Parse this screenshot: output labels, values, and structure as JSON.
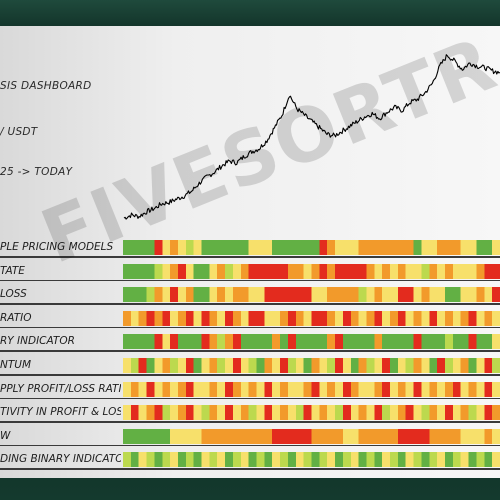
{
  "header": {
    "title": "SIS DASHBOARD",
    "pair": "/ USDT",
    "range": "25 -> TODAY"
  },
  "watermark": "FIVESORTRADE",
  "colors": {
    "red": "#e32b1e",
    "orange": "#f29a2b",
    "yellow": "#f7e06b",
    "lightgreen": "#bcd94e",
    "green": "#62b044",
    "price_line": "#000000"
  },
  "chart_data": {
    "type": "line",
    "title": "",
    "xlabel": "",
    "ylabel": "",
    "grid": false,
    "x": [
      0,
      2,
      4,
      6,
      8,
      10,
      12,
      14,
      16,
      18,
      20,
      22,
      24,
      26,
      28,
      30,
      32,
      34,
      36,
      38,
      40,
      42,
      44,
      46,
      48,
      50,
      52,
      54,
      56,
      58,
      60,
      62,
      64,
      66,
      68,
      70,
      72,
      74,
      76,
      78,
      80,
      82,
      84,
      86,
      88,
      90,
      92,
      94,
      96,
      98,
      100
    ],
    "series": [
      {
        "values": [
          5,
          7,
          6,
          9,
          11,
          14,
          15,
          17,
          19,
          22,
          27,
          31,
          34,
          38,
          41,
          40,
          44,
          47,
          49,
          54,
          62,
          70,
          83,
          74,
          70,
          66,
          62,
          58,
          57,
          60,
          63,
          66,
          69,
          71,
          68,
          72,
          75,
          73,
          78,
          80,
          84,
          90,
          101,
          108,
          104,
          99,
          103,
          101,
          100,
          98,
          97
        ]
      }
    ],
    "ylim": [
      0,
      115
    ],
    "indicators": [
      {
        "label": "PLE PRICING MODELS",
        "segments": [
          "g",
          "g",
          "g",
          "g",
          "r",
          "y",
          "o",
          "y",
          "lg",
          "y",
          "g",
          "g",
          "g",
          "g",
          "g",
          "g",
          "y",
          "y",
          "y",
          "g",
          "g",
          "g",
          "g",
          "g",
          "g",
          "r",
          "o",
          "y",
          "y",
          "y",
          "o",
          "o",
          "o",
          "o",
          "o",
          "o",
          "o",
          "g",
          "y",
          "y",
          "o",
          "o",
          "o",
          "y",
          "y",
          "g",
          "g",
          "y"
        ]
      },
      {
        "label": "TATE",
        "segments": [
          "g",
          "g",
          "g",
          "g",
          "lg",
          "y",
          "o",
          "r",
          "y",
          "g",
          "g",
          "y",
          "o",
          "lg",
          "y",
          "o",
          "r",
          "r",
          "r",
          "r",
          "r",
          "o",
          "o",
          "y",
          "o",
          "r",
          "o",
          "r",
          "r",
          "r",
          "r",
          "o",
          "y",
          "o",
          "y",
          "o",
          "y",
          "y",
          "lg",
          "o",
          "y",
          "o",
          "y",
          "y",
          "y",
          "o",
          "r",
          "r"
        ]
      },
      {
        "label": "LOSS",
        "segments": [
          "g",
          "g",
          "g",
          "lg",
          "o",
          "y",
          "r",
          "y",
          "o",
          "g",
          "g",
          "y",
          "o",
          "y",
          "o",
          "o",
          "y",
          "y",
          "r",
          "r",
          "r",
          "r",
          "r",
          "r",
          "y",
          "y",
          "o",
          "o",
          "o",
          "o",
          "lg",
          "y",
          "o",
          "y",
          "y",
          "r",
          "r",
          "y",
          "o",
          "y",
          "y",
          "g",
          "g",
          "y",
          "y",
          "o",
          "y",
          "r"
        ]
      },
      {
        "label": "RATIO",
        "segments": [
          "o",
          "y",
          "o",
          "r",
          "o",
          "r",
          "y",
          "o",
          "r",
          "y",
          "r",
          "o",
          "y",
          "r",
          "o",
          "y",
          "r",
          "r",
          "y",
          "y",
          "o",
          "r",
          "o",
          "y",
          "r",
          "r",
          "o",
          "y",
          "r",
          "o",
          "y",
          "o",
          "r",
          "y",
          "o",
          "r",
          "y",
          "o",
          "y",
          "r",
          "y",
          "o",
          "y",
          "o",
          "r",
          "y",
          "o",
          "y"
        ]
      },
      {
        "label": "RY INDICATOR",
        "segments": [
          "g",
          "g",
          "g",
          "g",
          "r",
          "y",
          "r",
          "g",
          "g",
          "g",
          "r",
          "o",
          "lg",
          "o",
          "r",
          "g",
          "g",
          "g",
          "g",
          "o",
          "g",
          "r",
          "g",
          "g",
          "g",
          "g",
          "o",
          "r",
          "g",
          "g",
          "g",
          "g",
          "o",
          "g",
          "g",
          "g",
          "g",
          "r",
          "g",
          "g",
          "g",
          "lg",
          "g",
          "g",
          "r",
          "g",
          "g",
          "y"
        ]
      },
      {
        "label": "NTUM",
        "segments": [
          "y",
          "lg",
          "r",
          "g",
          "y",
          "o",
          "lg",
          "y",
          "r",
          "g",
          "y",
          "o",
          "lg",
          "y",
          "r",
          "y",
          "lg",
          "g",
          "o",
          "y",
          "r",
          "lg",
          "y",
          "g",
          "o",
          "y",
          "lg",
          "r",
          "y",
          "g",
          "o",
          "lg",
          "y",
          "r",
          "g",
          "y",
          "lg",
          "o",
          "y",
          "g",
          "r",
          "lg",
          "y",
          "o",
          "g",
          "y",
          "r",
          "lg"
        ]
      },
      {
        "label": "PPLY PROFIT/LOSS RATIO",
        "segments": [
          "y",
          "o",
          "y",
          "r",
          "y",
          "o",
          "y",
          "o",
          "r",
          "y",
          "y",
          "o",
          "y",
          "r",
          "o",
          "y",
          "o",
          "y",
          "r",
          "y",
          "o",
          "y",
          "y",
          "o",
          "r",
          "y",
          "o",
          "y",
          "r",
          "o",
          "y",
          "y",
          "o",
          "r",
          "y",
          "o",
          "y",
          "r",
          "y",
          "o",
          "y",
          "o",
          "r",
          "y",
          "o",
          "y",
          "r",
          "y"
        ]
      },
      {
        "label": "TIVITY IN PROFIT & LOSS",
        "segments": [
          "y",
          "r",
          "y",
          "o",
          "r",
          "lg",
          "y",
          "o",
          "r",
          "y",
          "lg",
          "o",
          "y",
          "r",
          "y",
          "o",
          "lg",
          "y",
          "r",
          "y",
          "o",
          "y",
          "lg",
          "r",
          "y",
          "o",
          "y",
          "lg",
          "r",
          "y",
          "o",
          "y",
          "r",
          "lg",
          "y",
          "o",
          "r",
          "y",
          "lg",
          "o",
          "y",
          "r",
          "y",
          "o",
          "lg",
          "y",
          "r",
          "o"
        ]
      },
      {
        "label": "W",
        "segments": [
          "g",
          "g",
          "g",
          "g",
          "g",
          "g",
          "y",
          "y",
          "y",
          "y",
          "o",
          "o",
          "o",
          "o",
          "o",
          "o",
          "o",
          "o",
          "o",
          "r",
          "r",
          "r",
          "r",
          "r",
          "o",
          "o",
          "o",
          "o",
          "y",
          "y",
          "o",
          "o",
          "o",
          "o",
          "o",
          "r",
          "r",
          "r",
          "r",
          "o",
          "o",
          "o",
          "o",
          "y",
          "y",
          "y",
          "o",
          "y"
        ]
      },
      {
        "label": "DING BINARY INDICATOR",
        "segments": [
          "lg",
          "g",
          "y",
          "lg",
          "g",
          "lg",
          "y",
          "g",
          "lg",
          "g",
          "y",
          "lg",
          "y",
          "g",
          "lg",
          "y",
          "g",
          "lg",
          "g",
          "y",
          "lg",
          "g",
          "y",
          "lg",
          "g",
          "lg",
          "y",
          "g",
          "lg",
          "y",
          "g",
          "lg",
          "g",
          "y",
          "lg",
          "g",
          "y",
          "lg",
          "g",
          "lg",
          "y",
          "g",
          "lg",
          "y",
          "g",
          "lg",
          "g",
          "y"
        ]
      }
    ]
  }
}
